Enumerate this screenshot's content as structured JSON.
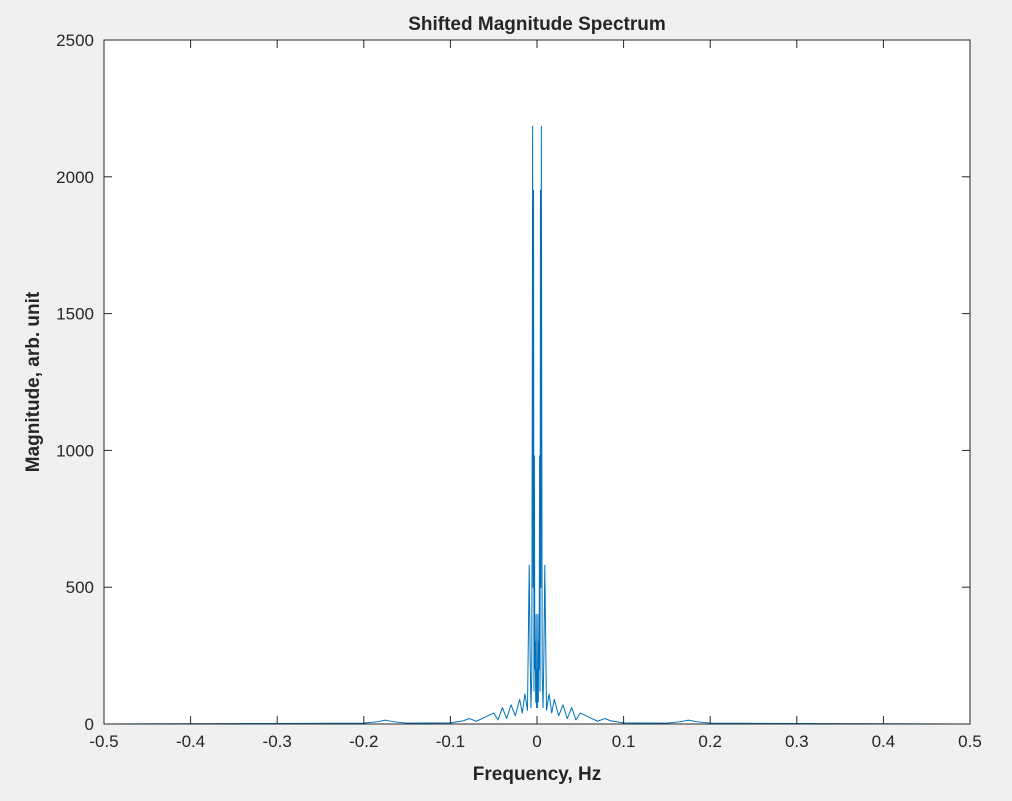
{
  "window": {
    "background": "#f0f0f0"
  },
  "chart_data": {
    "type": "line",
    "title": "Shifted Magnitude Spectrum",
    "xlabel": "Frequency, Hz",
    "ylabel": "Magnitude, arb. unit",
    "xlim": [
      -0.5,
      0.5
    ],
    "ylim": [
      0,
      2500
    ],
    "xticks": [
      -0.5,
      -0.4,
      -0.3,
      -0.2,
      -0.1,
      0,
      0.1,
      0.2,
      0.3,
      0.4,
      0.5
    ],
    "xtick_labels": [
      "-0.5",
      "-0.4",
      "-0.3",
      "-0.2",
      "-0.1",
      "0",
      "0.1",
      "0.2",
      "0.3",
      "0.4",
      "0.5"
    ],
    "yticks": [
      0,
      500,
      1000,
      1500,
      2000,
      2500
    ],
    "ytick_labels": [
      "0",
      "500",
      "1000",
      "1500",
      "2000",
      "2500"
    ],
    "grid": false,
    "series_color": "#0072bd",
    "series": [
      {
        "x": [
          -0.5,
          -0.3,
          -0.2,
          -0.185,
          -0.175,
          -0.165,
          -0.15,
          -0.1,
          -0.085,
          -0.078,
          -0.07,
          -0.06,
          -0.05,
          -0.045,
          -0.04,
          -0.035,
          -0.03,
          -0.025,
          -0.02,
          -0.017,
          -0.014,
          -0.011,
          -0.009,
          -0.008,
          -0.007,
          -0.006,
          -0.005,
          -0.0045,
          -0.004,
          -0.0035,
          -0.003,
          -0.0025,
          -0.002,
          -0.0015,
          -0.001,
          -0.0005,
          0,
          0.0005,
          0.001,
          0.0015,
          0.002,
          0.0025,
          0.003,
          0.0035,
          0.004,
          0.0045,
          0.005,
          0.006,
          0.007,
          0.008,
          0.009,
          0.011,
          0.014,
          0.017,
          0.02,
          0.025,
          0.03,
          0.035,
          0.04,
          0.045,
          0.05,
          0.06,
          0.07,
          0.078,
          0.085,
          0.1,
          0.15,
          0.165,
          0.175,
          0.185,
          0.2,
          0.3,
          0.5
        ],
        "y": [
          0,
          2,
          3,
          8,
          14,
          8,
          3,
          4,
          12,
          20,
          10,
          25,
          40,
          15,
          60,
          20,
          70,
          30,
          90,
          40,
          110,
          50,
          580,
          270,
          60,
          180,
          2185,
          500,
          1950,
          120,
          980,
          200,
          300,
          80,
          400,
          60,
          200,
          60,
          400,
          80,
          300,
          200,
          980,
          120,
          1950,
          500,
          2185,
          180,
          60,
          270,
          580,
          50,
          110,
          40,
          90,
          30,
          70,
          20,
          60,
          15,
          40,
          25,
          10,
          20,
          12,
          4,
          3,
          8,
          14,
          8,
          3,
          2,
          0
        ]
      }
    ]
  }
}
